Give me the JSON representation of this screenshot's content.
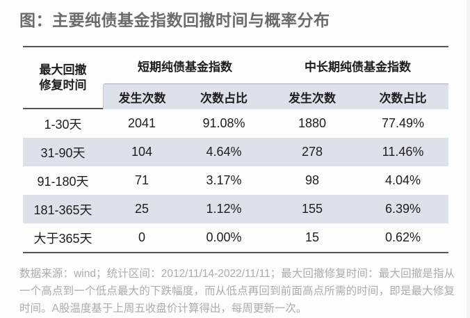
{
  "title": "图：主要纯债基金指数回撤时间与概率分布",
  "table": {
    "corner_header": {
      "line1": "最大回撤",
      "line2": "修复时间"
    },
    "groups": [
      {
        "label": "短期纯债基金指数"
      },
      {
        "label": "中长期纯债基金指数"
      }
    ],
    "sub_headers": [
      "发生次数",
      "次数占比",
      "发生次数",
      "次数占比"
    ],
    "rows": [
      {
        "label": "1-30天",
        "values": [
          "2041",
          "91.08%",
          "1880",
          "77.49%"
        ]
      },
      {
        "label": "31-90天",
        "values": [
          "104",
          "4.64%",
          "278",
          "11.46%"
        ]
      },
      {
        "label": "91-180天",
        "values": [
          "71",
          "3.17%",
          "98",
          "4.04%"
        ]
      },
      {
        "label": "181-365天",
        "values": [
          "25",
          "1.12%",
          "155",
          "6.39%"
        ]
      },
      {
        "label": "大于365天",
        "values": [
          "0",
          "0.00%",
          "15",
          "0.62%"
        ]
      }
    ]
  },
  "footnote": "数据来源：wind；统计区间：2012/11/14-2022/11/11；最大回撤修复时间：最大回撤是指从一个高点到一个低点最大的下跌幅度，而从低点再回到前面高点所需的时间，即是最大修复时间。A股温度基于上周五收盘价计算得出，每周更新一次。",
  "colors": {
    "stripe": "#dde1ea",
    "border_dark": "#565656",
    "title": "#6b6b6b",
    "footnote": "#acacac",
    "cell_text": "#1d1d1f"
  },
  "chart_data": {
    "type": "table",
    "title": "图：主要纯债基金指数回撤时间与概率分布",
    "column_groups": [
      "短期纯债基金指数",
      "中长期纯债基金指数"
    ],
    "columns": [
      "最大回撤修复时间",
      "发生次数",
      "次数占比",
      "发生次数",
      "次数占比"
    ],
    "categories": [
      "1-30天",
      "31-90天",
      "91-180天",
      "181-365天",
      "大于365天"
    ],
    "series": [
      {
        "name": "短期纯债基金指数-发生次数",
        "values": [
          2041,
          104,
          71,
          25,
          0
        ]
      },
      {
        "name": "短期纯债基金指数-次数占比(%)",
        "values": [
          91.08,
          4.64,
          3.17,
          1.12,
          0.0
        ]
      },
      {
        "name": "中长期纯债基金指数-发生次数",
        "values": [
          1880,
          278,
          98,
          155,
          15
        ]
      },
      {
        "name": "中长期纯债基金指数-次数占比(%)",
        "values": [
          77.49,
          11.46,
          4.04,
          6.39,
          0.62
        ]
      }
    ],
    "source_note": "数据来源：wind；统计区间：2012/11/14-2022/11/11"
  }
}
